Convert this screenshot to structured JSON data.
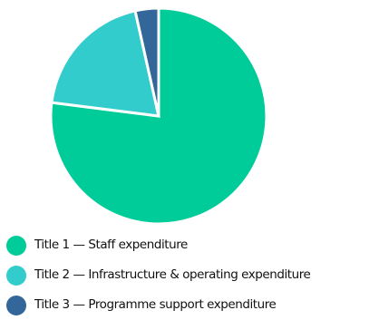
{
  "chart_data": {
    "type": "pie",
    "categories": [
      "Title 1 — Staff expenditure",
      "Title 2 — Infrastructure & operating expenditure",
      "Title 3 — Programme support expenditure"
    ],
    "values": [
      77,
      19.5,
      3.5
    ],
    "colors": [
      "#00cc99",
      "#33cccc",
      "#336699"
    ],
    "title": "",
    "legend_placement": "bottom-left"
  }
}
